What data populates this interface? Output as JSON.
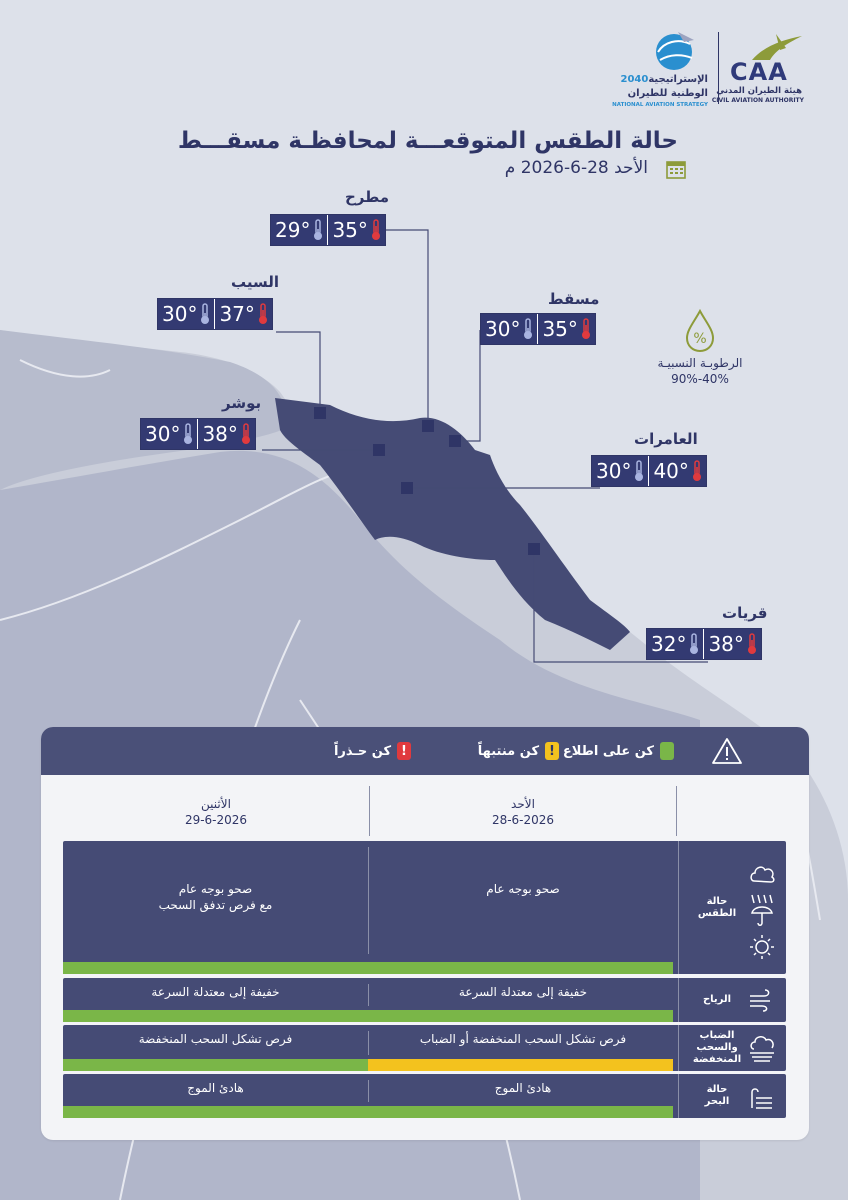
{
  "header": {
    "caa_ar": "هيئة الطيران المدني",
    "caa_en": "CIVIL AVIATION AUTHORITY",
    "caa_abbr": "CAA",
    "strategy_line1_year": "2040",
    "strategy_line1": "الإستراتيجية",
    "strategy_line2": "الوطنية للطيران",
    "strategy_en": "NATIONAL AVIATION STRATEGY",
    "title": "حالة الطقس المتوقعـــة لمحافظـة مسقـــط",
    "date": "الأحد  28-6-2026 م"
  },
  "cities": [
    {
      "name": "مطرح",
      "max": "35°",
      "min": "29°"
    },
    {
      "name": "السيب",
      "max": "37°",
      "min": "30°"
    },
    {
      "name": "مسقط",
      "max": "35°",
      "min": "30°"
    },
    {
      "name": "بوشر",
      "max": "38°",
      "min": "30°"
    },
    {
      "name": "العامرات",
      "max": "40°",
      "min": "30°"
    },
    {
      "name": "قريات",
      "max": "38°",
      "min": "32°"
    }
  ],
  "humidity": {
    "label": "الرطوبـة النسبيـة",
    "value": "40%-90%"
  },
  "legend": {
    "green": "كن على اطلاع",
    "yellow": "كن منتبهاً",
    "yellow_mark": "!",
    "red": "كن حـذراً",
    "red_mark": "!"
  },
  "colors": {
    "green": "#7ab648",
    "yellow": "#f3c21e",
    "red": "#e03a3e",
    "navy": "#333a72"
  },
  "days": [
    {
      "name": "الأحد",
      "date": "28-6-2026"
    },
    {
      "name": "الأثنين",
      "date": "29-6-2026"
    }
  ],
  "rows": [
    {
      "label": "حالة الطقس",
      "icon": "cloud-sun-rain-icon",
      "day1": "صحو بوجه عام",
      "day2_l1": "صحو بوجه عام",
      "day2_l2": "مع فرص تدفق السحب",
      "day1_level": "green",
      "day2_level": "green"
    },
    {
      "label": "الرياح",
      "icon": "wind-icon",
      "day1": "خفيفة إلى معتدلة السرعة",
      "day2": "خفيفة إلى معتدلة السرعة",
      "day1_level": "green",
      "day2_level": "green"
    },
    {
      "label_l1": "الضباب",
      "label_l2": "والسحب",
      "label_l3": "المنخفضة",
      "icon": "fog-icon",
      "day1": "فرص تشكل السحب المنخفضة أو الضباب",
      "day2": "فرص تشكل السحب المنخفضة",
      "day1_level": "yellow",
      "day2_level": "green"
    },
    {
      "label_l1": "حالة",
      "label_l2": "البحر",
      "icon": "waves-icon",
      "day1": "هادئ الموج",
      "day2": "هادئ الموج",
      "day1_level": "green",
      "day2_level": "green"
    }
  ]
}
